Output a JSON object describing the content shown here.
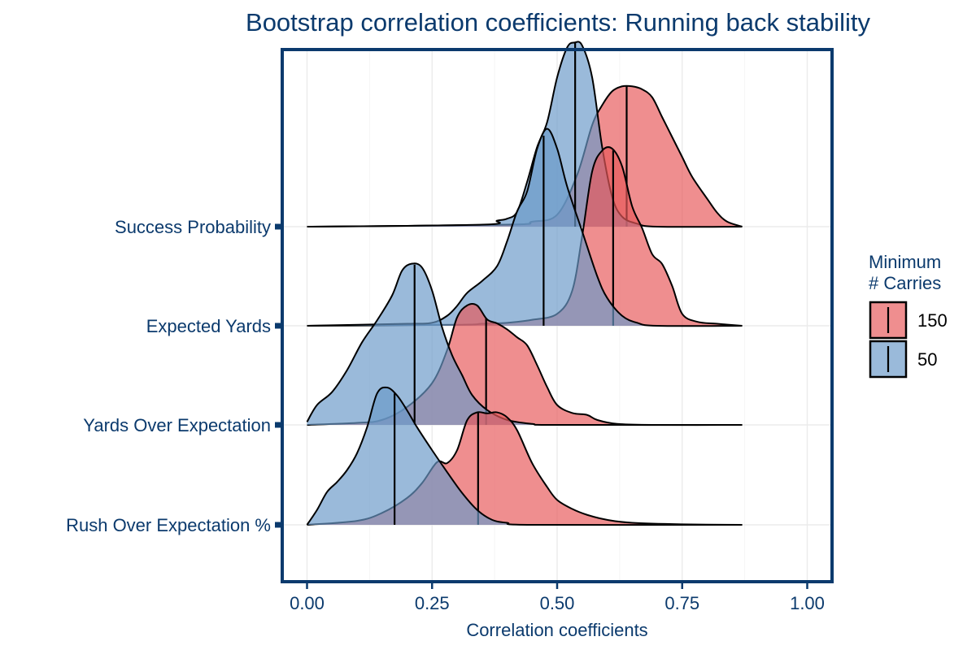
{
  "chart_data": {
    "type": "ridgeline",
    "title": "Bootstrap correlation coefficients: Running back stability",
    "xlabel": "Correlation coefficients",
    "ylabel": "",
    "xlim": [
      -0.05,
      1.05
    ],
    "x_ticks": [
      0,
      0.25,
      0.5,
      0.75,
      1
    ],
    "x_tick_labels": [
      "0.00",
      "0.25",
      "0.50",
      "0.75",
      "1.00"
    ],
    "grid": true,
    "categories": [
      "Rush Over Expectation %",
      "Yards Over Expectation",
      "Expected Yards",
      "Success Probability"
    ],
    "legend": {
      "title": [
        "Minimum",
        "# Carries"
      ],
      "position": "right",
      "entries": [
        {
          "label": "150",
          "color": "#e8595a"
        },
        {
          "label": "50",
          "color": "#6a9ac8"
        }
      ]
    },
    "colors": {
      "frame": "#0b3a6d",
      "text": "#0b3a6d",
      "grid": "#ebebeb"
    },
    "series": [
      {
        "name": "150",
        "color": "#e8595a",
        "densities": [
          {
            "category": "Rush Over Expectation %",
            "median": 0.342,
            "range": [
              0,
              0.87
            ],
            "points": [
              [
                0,
                0
              ],
              [
                0.1,
                0.04
              ],
              [
                0.15,
                0.12
              ],
              [
                0.2,
                0.27
              ],
              [
                0.23,
                0.42
              ],
              [
                0.26,
                0.63
              ],
              [
                0.28,
                0.62
              ],
              [
                0.3,
                0.75
              ],
              [
                0.32,
                1.05
              ],
              [
                0.34,
                1.13
              ],
              [
                0.36,
                1.12
              ],
              [
                0.38,
                1.13
              ],
              [
                0.4,
                1.08
              ],
              [
                0.42,
                0.95
              ],
              [
                0.45,
                0.62
              ],
              [
                0.48,
                0.38
              ],
              [
                0.5,
                0.25
              ],
              [
                0.53,
                0.16
              ],
              [
                0.56,
                0.1
              ],
              [
                0.6,
                0.05
              ],
              [
                0.65,
                0.02
              ],
              [
                0.75,
                0.005
              ],
              [
                0.87,
                0
              ]
            ]
          },
          {
            "category": "Yards Over Expectation",
            "median": 0.358,
            "range": [
              0,
              0.87
            ],
            "points": [
              [
                0,
                0
              ],
              [
                0.1,
                0.02
              ],
              [
                0.15,
                0.05
              ],
              [
                0.2,
                0.18
              ],
              [
                0.25,
                0.42
              ],
              [
                0.28,
                0.75
              ],
              [
                0.3,
                1.08
              ],
              [
                0.32,
                1.2
              ],
              [
                0.34,
                1.2
              ],
              [
                0.36,
                1.06
              ],
              [
                0.38,
                1.02
              ],
              [
                0.4,
                0.96
              ],
              [
                0.42,
                0.88
              ],
              [
                0.44,
                0.8
              ],
              [
                0.46,
                0.6
              ],
              [
                0.48,
                0.38
              ],
              [
                0.5,
                0.2
              ],
              [
                0.53,
                0.12
              ],
              [
                0.56,
                0.1
              ],
              [
                0.58,
                0.05
              ],
              [
                0.62,
                0.01
              ],
              [
                0.7,
                0
              ],
              [
                0.87,
                0
              ]
            ]
          },
          {
            "category": "Expected Yards",
            "median": 0.612,
            "range": [
              0,
              0.87
            ],
            "points": [
              [
                0,
                0
              ],
              [
                0.3,
                0.01
              ],
              [
                0.35,
                0.02
              ],
              [
                0.4,
                0.03
              ],
              [
                0.45,
                0.06
              ],
              [
                0.5,
                0.12
              ],
              [
                0.53,
                0.35
              ],
              [
                0.55,
                0.9
              ],
              [
                0.57,
                1.55
              ],
              [
                0.59,
                1.76
              ],
              [
                0.61,
                1.78
              ],
              [
                0.63,
                1.6
              ],
              [
                0.65,
                1.2
              ],
              [
                0.67,
                0.98
              ],
              [
                0.69,
                0.72
              ],
              [
                0.71,
                0.62
              ],
              [
                0.73,
                0.4
              ],
              [
                0.75,
                0.12
              ],
              [
                0.78,
                0.04
              ],
              [
                0.82,
                0.02
              ],
              [
                0.87,
                0
              ]
            ]
          },
          {
            "category": "Success Probability",
            "median": 0.639,
            "range": [
              0,
              0.87
            ],
            "points": [
              [
                0,
                0
              ],
              [
                0.4,
                0.02
              ],
              [
                0.45,
                0.05
              ],
              [
                0.5,
                0.12
              ],
              [
                0.54,
                0.52
              ],
              [
                0.57,
                1.02
              ],
              [
                0.59,
                1.22
              ],
              [
                0.61,
                1.36
              ],
              [
                0.63,
                1.41
              ],
              [
                0.65,
                1.41
              ],
              [
                0.67,
                1.38
              ],
              [
                0.69,
                1.3
              ],
              [
                0.71,
                1.1
              ],
              [
                0.73,
                0.9
              ],
              [
                0.75,
                0.7
              ],
              [
                0.77,
                0.5
              ],
              [
                0.8,
                0.28
              ],
              [
                0.82,
                0.14
              ],
              [
                0.84,
                0.05
              ],
              [
                0.87,
                0
              ]
            ]
          }
        ]
      },
      {
        "name": "50",
        "color": "#6a9ac8",
        "densities": [
          {
            "category": "Rush Over Expectation %",
            "median": 0.175,
            "range": [
              0,
              0.87
            ],
            "points": [
              [
                0,
                0
              ],
              [
                0.02,
                0.15
              ],
              [
                0.04,
                0.33
              ],
              [
                0.06,
                0.43
              ],
              [
                0.08,
                0.55
              ],
              [
                0.1,
                0.72
              ],
              [
                0.12,
                0.98
              ],
              [
                0.14,
                1.32
              ],
              [
                0.16,
                1.38
              ],
              [
                0.18,
                1.3
              ],
              [
                0.2,
                1.15
              ],
              [
                0.22,
                0.98
              ],
              [
                0.25,
                0.75
              ],
              [
                0.28,
                0.53
              ],
              [
                0.31,
                0.32
              ],
              [
                0.34,
                0.15
              ],
              [
                0.37,
                0.05
              ],
              [
                0.4,
                0.02
              ],
              [
                0.45,
                0
              ],
              [
                0.87,
                0
              ]
            ]
          },
          {
            "category": "Yards Over Expectation",
            "median": 0.215,
            "range": [
              0,
              0.87
            ],
            "points": [
              [
                0,
                0.03
              ],
              [
                0.02,
                0.2
              ],
              [
                0.05,
                0.33
              ],
              [
                0.08,
                0.55
              ],
              [
                0.11,
                0.83
              ],
              [
                0.14,
                1.05
              ],
              [
                0.17,
                1.3
              ],
              [
                0.19,
                1.55
              ],
              [
                0.21,
                1.62
              ],
              [
                0.23,
                1.58
              ],
              [
                0.25,
                1.35
              ],
              [
                0.27,
                0.98
              ],
              [
                0.29,
                0.7
              ],
              [
                0.31,
                0.5
              ],
              [
                0.33,
                0.3
              ],
              [
                0.36,
                0.15
              ],
              [
                0.4,
                0.05
              ],
              [
                0.45,
                0.01
              ],
              [
                0.5,
                0
              ],
              [
                0.87,
                0
              ]
            ]
          },
          {
            "category": "Expected Yards",
            "median": 0.473,
            "range": [
              0,
              0.87
            ],
            "points": [
              [
                0,
                0
              ],
              [
                0.2,
                0.02
              ],
              [
                0.25,
                0.03
              ],
              [
                0.28,
                0.1
              ],
              [
                0.3,
                0.2
              ],
              [
                0.32,
                0.33
              ],
              [
                0.35,
                0.45
              ],
              [
                0.38,
                0.6
              ],
              [
                0.4,
                0.85
              ],
              [
                0.42,
                1.15
              ],
              [
                0.44,
                1.35
              ],
              [
                0.46,
                1.78
              ],
              [
                0.48,
                1.98
              ],
              [
                0.5,
                1.78
              ],
              [
                0.52,
                1.4
              ],
              [
                0.55,
                0.95
              ],
              [
                0.58,
                0.5
              ],
              [
                0.6,
                0.28
              ],
              [
                0.63,
                0.1
              ],
              [
                0.66,
                0.03
              ],
              [
                0.7,
                0
              ],
              [
                0.87,
                0
              ]
            ]
          },
          {
            "category": "Success Probability",
            "median": 0.536,
            "range": [
              0,
              0.87
            ],
            "points": [
              [
                0,
                0
              ],
              [
                0.35,
                0.02
              ],
              [
                0.38,
                0.06
              ],
              [
                0.4,
                0.08
              ],
              [
                0.42,
                0.15
              ],
              [
                0.44,
                0.45
              ],
              [
                0.46,
                0.8
              ],
              [
                0.48,
                1.05
              ],
              [
                0.5,
                1.5
              ],
              [
                0.52,
                1.8
              ],
              [
                0.535,
                1.85
              ],
              [
                0.55,
                1.82
              ],
              [
                0.57,
                1.5
              ],
              [
                0.59,
                0.8
              ],
              [
                0.61,
                0.3
              ],
              [
                0.63,
                0.1
              ],
              [
                0.66,
                0.03
              ],
              [
                0.7,
                0
              ],
              [
                0.87,
                0
              ]
            ]
          }
        ]
      }
    ]
  }
}
